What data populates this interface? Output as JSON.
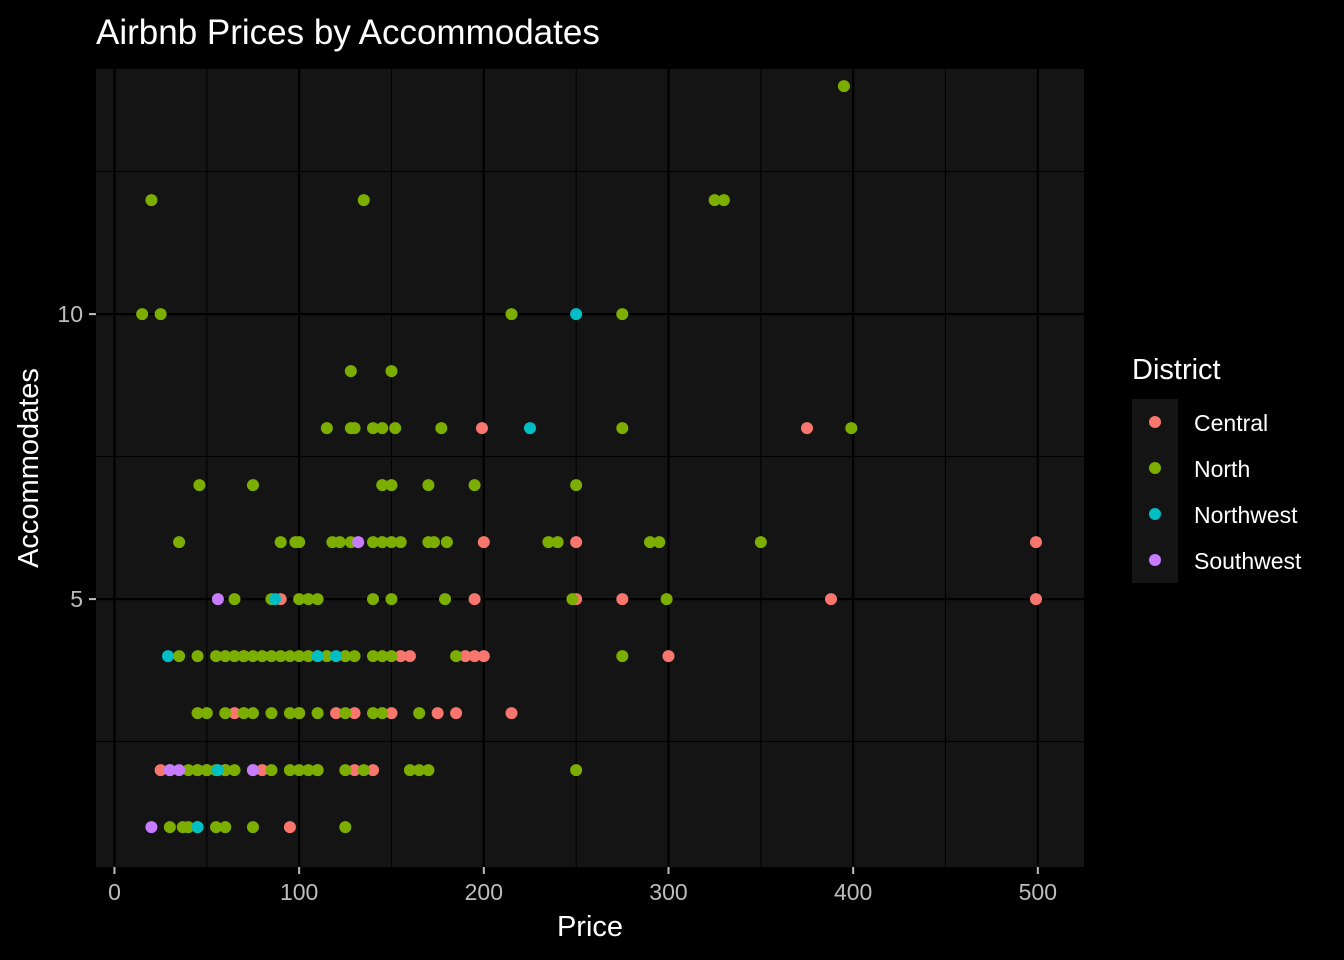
{
  "chart_data": {
    "type": "scatter",
    "title": "Airbnb Prices by Accommodates",
    "xlabel": "Price",
    "ylabel": "Accommodates",
    "xlim": [
      -10,
      525
    ],
    "ylim": [
      0.3,
      14.3
    ],
    "x_ticks": [
      0,
      100,
      200,
      300,
      400,
      500
    ],
    "x_tick_labels": [
      "0",
      "100",
      "200",
      "300",
      "400",
      "500"
    ],
    "x_minor_ticks": [
      50,
      150,
      250,
      350,
      450
    ],
    "y_ticks": [
      5,
      10
    ],
    "y_tick_labels": [
      "5",
      "10"
    ],
    "y_minor_ticks": [
      2.5,
      7.5,
      12.5
    ],
    "grid": true,
    "background": "#141414",
    "legend": {
      "title": "District",
      "position": "right"
    },
    "series": [
      {
        "name": "Central",
        "color": "#F8766D",
        "points": [
          [
            499,
            5
          ],
          [
            499,
            6
          ],
          [
            388,
            5
          ],
          [
            375,
            8
          ],
          [
            300,
            4
          ],
          [
            275,
            5
          ],
          [
            250,
            5
          ],
          [
            250,
            6
          ],
          [
            215,
            3
          ],
          [
            200,
            6
          ],
          [
            200,
            4
          ],
          [
            199,
            8
          ],
          [
            195,
            4
          ],
          [
            195,
            5
          ],
          [
            190,
            4
          ],
          [
            185,
            3
          ],
          [
            175,
            3
          ],
          [
            160,
            4
          ],
          [
            155,
            4
          ],
          [
            150,
            3
          ],
          [
            140,
            2
          ],
          [
            130,
            2
          ],
          [
            130,
            3
          ],
          [
            120,
            3
          ],
          [
            110,
            2
          ],
          [
            100,
            3
          ],
          [
            95,
            1
          ],
          [
            90,
            5
          ],
          [
            80,
            2
          ],
          [
            70,
            4
          ],
          [
            65,
            3
          ],
          [
            60,
            2
          ],
          [
            50,
            2
          ],
          [
            45,
            2
          ],
          [
            25,
            2
          ]
        ]
      },
      {
        "name": "North",
        "color": "#7CAE00",
        "points": [
          [
            395,
            14
          ],
          [
            20,
            12
          ],
          [
            135,
            12
          ],
          [
            325,
            12
          ],
          [
            330,
            12
          ],
          [
            15,
            10
          ],
          [
            25,
            10
          ],
          [
            215,
            10
          ],
          [
            275,
            10
          ],
          [
            128,
            9
          ],
          [
            150,
            9
          ],
          [
            115,
            8
          ],
          [
            130,
            8
          ],
          [
            128,
            8
          ],
          [
            140,
            8
          ],
          [
            145,
            8
          ],
          [
            152,
            8
          ],
          [
            177,
            8
          ],
          [
            275,
            8
          ],
          [
            399,
            8
          ],
          [
            46,
            7
          ],
          [
            75,
            7
          ],
          [
            145,
            7
          ],
          [
            150,
            7
          ],
          [
            170,
            7
          ],
          [
            195,
            7
          ],
          [
            250,
            7
          ],
          [
            35,
            6
          ],
          [
            90,
            6
          ],
          [
            100,
            6
          ],
          [
            98,
            6
          ],
          [
            118,
            6
          ],
          [
            122,
            6
          ],
          [
            128,
            6
          ],
          [
            140,
            6
          ],
          [
            145,
            6
          ],
          [
            150,
            6
          ],
          [
            155,
            6
          ],
          [
            170,
            6
          ],
          [
            173,
            6
          ],
          [
            180,
            6
          ],
          [
            235,
            6
          ],
          [
            240,
            6
          ],
          [
            290,
            6
          ],
          [
            295,
            6
          ],
          [
            350,
            6
          ],
          [
            65,
            5
          ],
          [
            85,
            5
          ],
          [
            100,
            5
          ],
          [
            105,
            5
          ],
          [
            110,
            5
          ],
          [
            140,
            5
          ],
          [
            150,
            5
          ],
          [
            179,
            5
          ],
          [
            248,
            5
          ],
          [
            299,
            5
          ],
          [
            35,
            4
          ],
          [
            45,
            4
          ],
          [
            55,
            4
          ],
          [
            60,
            4
          ],
          [
            65,
            4
          ],
          [
            70,
            4
          ],
          [
            75,
            4
          ],
          [
            80,
            4
          ],
          [
            85,
            4
          ],
          [
            90,
            4
          ],
          [
            95,
            4
          ],
          [
            100,
            4
          ],
          [
            105,
            4
          ],
          [
            115,
            4
          ],
          [
            125,
            4
          ],
          [
            130,
            4
          ],
          [
            140,
            4
          ],
          [
            145,
            4
          ],
          [
            150,
            4
          ],
          [
            185,
            4
          ],
          [
            275,
            4
          ],
          [
            45,
            3
          ],
          [
            50,
            3
          ],
          [
            60,
            3
          ],
          [
            70,
            3
          ],
          [
            75,
            3
          ],
          [
            85,
            3
          ],
          [
            95,
            3
          ],
          [
            100,
            3
          ],
          [
            110,
            3
          ],
          [
            125,
            3
          ],
          [
            140,
            3
          ],
          [
            145,
            3
          ],
          [
            165,
            3
          ],
          [
            30,
            2
          ],
          [
            40,
            2
          ],
          [
            45,
            2
          ],
          [
            50,
            2
          ],
          [
            55,
            2
          ],
          [
            60,
            2
          ],
          [
            65,
            2
          ],
          [
            75,
            2
          ],
          [
            85,
            2
          ],
          [
            95,
            2
          ],
          [
            100,
            2
          ],
          [
            105,
            2
          ],
          [
            110,
            2
          ],
          [
            125,
            2
          ],
          [
            135,
            2
          ],
          [
            160,
            2
          ],
          [
            165,
            2
          ],
          [
            170,
            2
          ],
          [
            250,
            2
          ],
          [
            30,
            1
          ],
          [
            37,
            1
          ],
          [
            40,
            1
          ],
          [
            45,
            1
          ],
          [
            55,
            1
          ],
          [
            60,
            1
          ],
          [
            75,
            1
          ],
          [
            125,
            1
          ]
        ]
      },
      {
        "name": "Northwest",
        "color": "#00BFC4",
        "points": [
          [
            250,
            10
          ],
          [
            225,
            8
          ],
          [
            87,
            5
          ],
          [
            29,
            4
          ],
          [
            110,
            4
          ],
          [
            120,
            4
          ],
          [
            56,
            2
          ],
          [
            45,
            1
          ]
        ]
      },
      {
        "name": "Southwest",
        "color": "#C77CFF",
        "points": [
          [
            132,
            6
          ],
          [
            56,
            5
          ],
          [
            30,
            2
          ],
          [
            35,
            2
          ],
          [
            75,
            2
          ],
          [
            20,
            1
          ]
        ]
      }
    ]
  }
}
